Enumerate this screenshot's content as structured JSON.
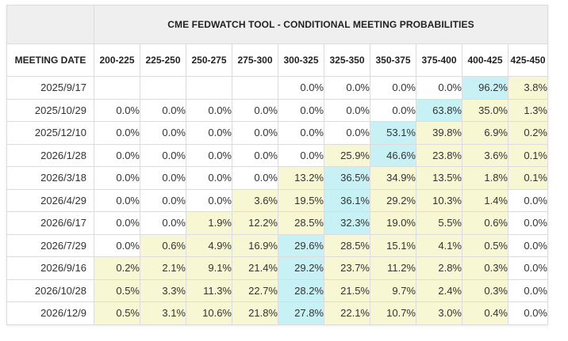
{
  "title": "CME FEDWATCH TOOL - CONDITIONAL MEETING PROBABILITIES",
  "header": {
    "meeting_date_label": "MEETING DATE",
    "ranges": [
      "200-225",
      "225-250",
      "250-275",
      "275-300",
      "300-325",
      "325-350",
      "350-375",
      "375-400",
      "400-425",
      "425-450"
    ]
  },
  "colors": {
    "highlight_max": "#c8f1f5",
    "highlight_nonzero": "#f7f7d3",
    "border": "#dcdcdc"
  },
  "rows": [
    {
      "date": "2025/9/17",
      "values": [
        "",
        "",
        "",
        "",
        "0.0%",
        "0.0%",
        "0.0%",
        "0.0%",
        "96.2%",
        "3.8%"
      ],
      "max_index": 8
    },
    {
      "date": "2025/10/29",
      "values": [
        "0.0%",
        "0.0%",
        "0.0%",
        "0.0%",
        "0.0%",
        "0.0%",
        "0.0%",
        "63.8%",
        "35.0%",
        "1.3%"
      ],
      "max_index": 7
    },
    {
      "date": "2025/12/10",
      "values": [
        "0.0%",
        "0.0%",
        "0.0%",
        "0.0%",
        "0.0%",
        "0.0%",
        "53.1%",
        "39.8%",
        "6.9%",
        "0.2%"
      ],
      "max_index": 6
    },
    {
      "date": "2026/1/28",
      "values": [
        "0.0%",
        "0.0%",
        "0.0%",
        "0.0%",
        "0.0%",
        "25.9%",
        "46.6%",
        "23.8%",
        "3.6%",
        "0.1%"
      ],
      "max_index": 6
    },
    {
      "date": "2026/3/18",
      "values": [
        "0.0%",
        "0.0%",
        "0.0%",
        "0.0%",
        "13.2%",
        "36.5%",
        "34.9%",
        "13.5%",
        "1.8%",
        "0.1%"
      ],
      "max_index": 5
    },
    {
      "date": "2026/4/29",
      "values": [
        "0.0%",
        "0.0%",
        "0.0%",
        "3.6%",
        "19.5%",
        "36.1%",
        "29.2%",
        "10.3%",
        "1.4%",
        "0.0%"
      ],
      "max_index": 5
    },
    {
      "date": "2026/6/17",
      "values": [
        "0.0%",
        "0.0%",
        "1.9%",
        "12.2%",
        "28.5%",
        "32.3%",
        "19.0%",
        "5.5%",
        "0.6%",
        "0.0%"
      ],
      "max_index": 5
    },
    {
      "date": "2026/7/29",
      "values": [
        "0.0%",
        "0.6%",
        "4.9%",
        "16.9%",
        "29.6%",
        "28.5%",
        "15.1%",
        "4.1%",
        "0.5%",
        "0.0%"
      ],
      "max_index": 4
    },
    {
      "date": "2026/9/16",
      "values": [
        "0.2%",
        "2.1%",
        "9.1%",
        "21.4%",
        "29.2%",
        "23.7%",
        "11.2%",
        "2.8%",
        "0.3%",
        "0.0%"
      ],
      "max_index": 4
    },
    {
      "date": "2026/10/28",
      "values": [
        "0.5%",
        "3.3%",
        "11.3%",
        "22.7%",
        "28.2%",
        "21.5%",
        "9.7%",
        "2.4%",
        "0.3%",
        "0.0%"
      ],
      "max_index": 4
    },
    {
      "date": "2026/12/9",
      "values": [
        "0.5%",
        "3.1%",
        "10.6%",
        "21.8%",
        "27.8%",
        "22.1%",
        "10.7%",
        "3.0%",
        "0.4%",
        "0.0%"
      ],
      "max_index": 4
    }
  ]
}
